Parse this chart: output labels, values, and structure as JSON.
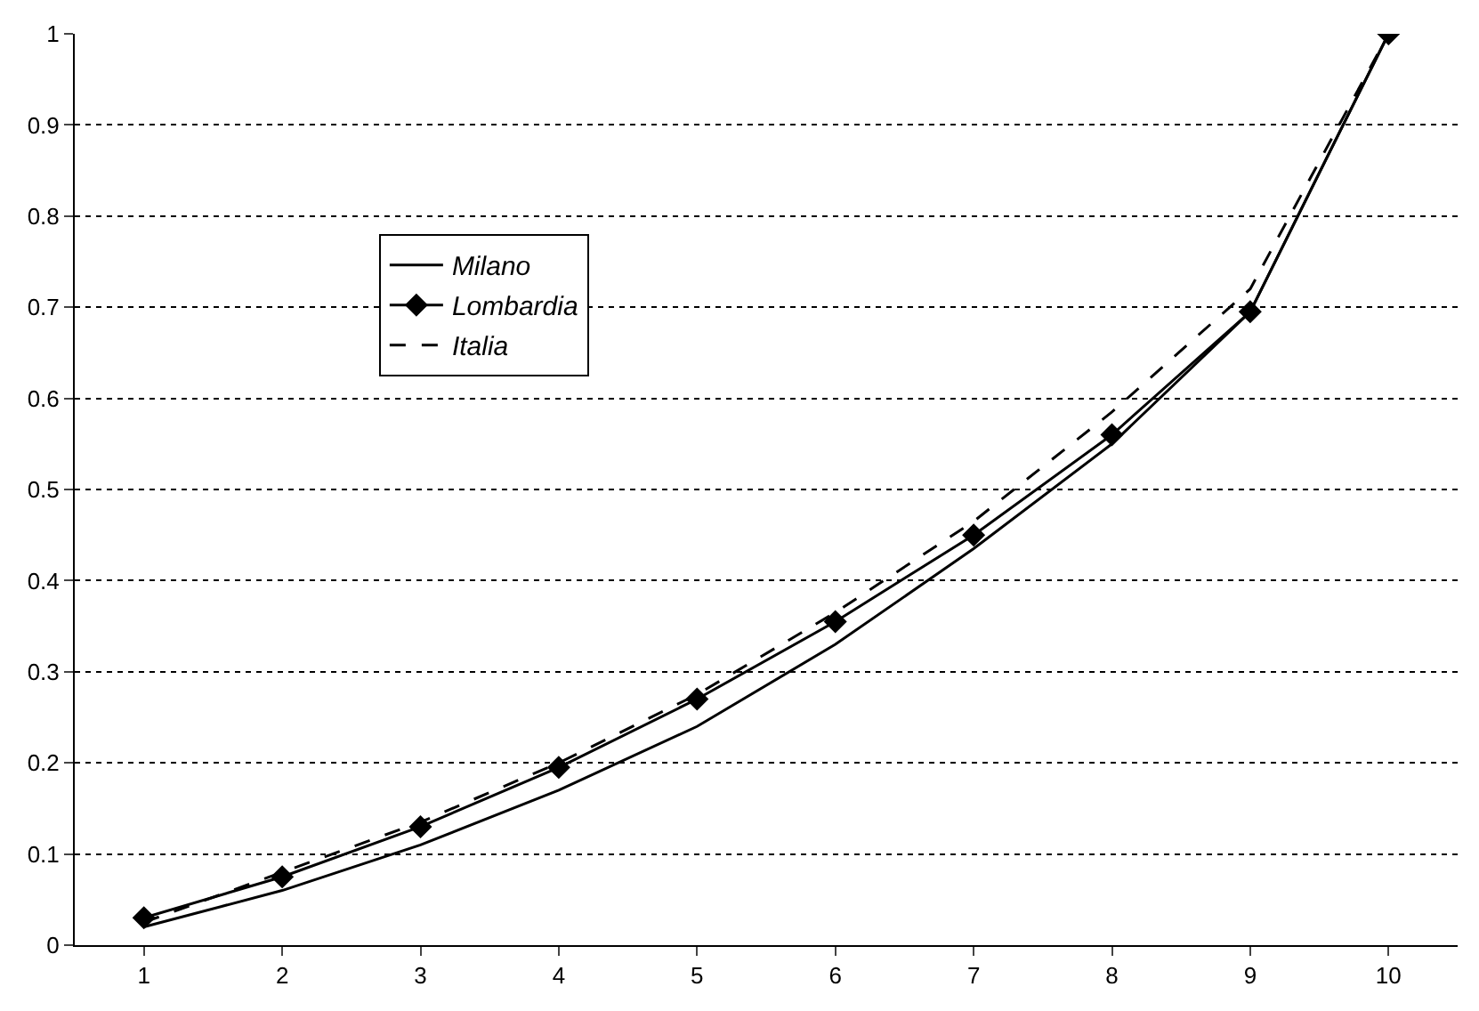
{
  "chart_data": {
    "type": "line",
    "categories": [
      "1",
      "2",
      "3",
      "4",
      "5",
      "6",
      "7",
      "8",
      "9",
      "10"
    ],
    "series": [
      {
        "name": "Milano",
        "color": "#000000",
        "marker": "none",
        "line_style": "solid",
        "values": [
          0.02,
          0.06,
          0.11,
          0.17,
          0.24,
          0.33,
          0.435,
          0.55,
          0.695,
          1
        ]
      },
      {
        "name": "Lombardia",
        "color": "#000000",
        "marker": "diamond",
        "line_style": "solid",
        "values": [
          0.03,
          0.075,
          0.13,
          0.195,
          0.27,
          0.355,
          0.45,
          0.56,
          0.695,
          1
        ]
      },
      {
        "name": "Italia",
        "color": "#000000",
        "marker": "none",
        "line_style": "dashed",
        "values": [
          0.025,
          0.08,
          0.135,
          0.2,
          0.275,
          0.365,
          0.465,
          0.585,
          0.72,
          1
        ]
      }
    ],
    "ylim": [
      0,
      1
    ],
    "yticks": [
      0,
      0.1,
      0.2,
      0.3,
      0.4,
      0.5,
      0.6,
      0.7,
      0.8,
      0.9,
      1
    ],
    "grid": "y",
    "legend": "left"
  }
}
